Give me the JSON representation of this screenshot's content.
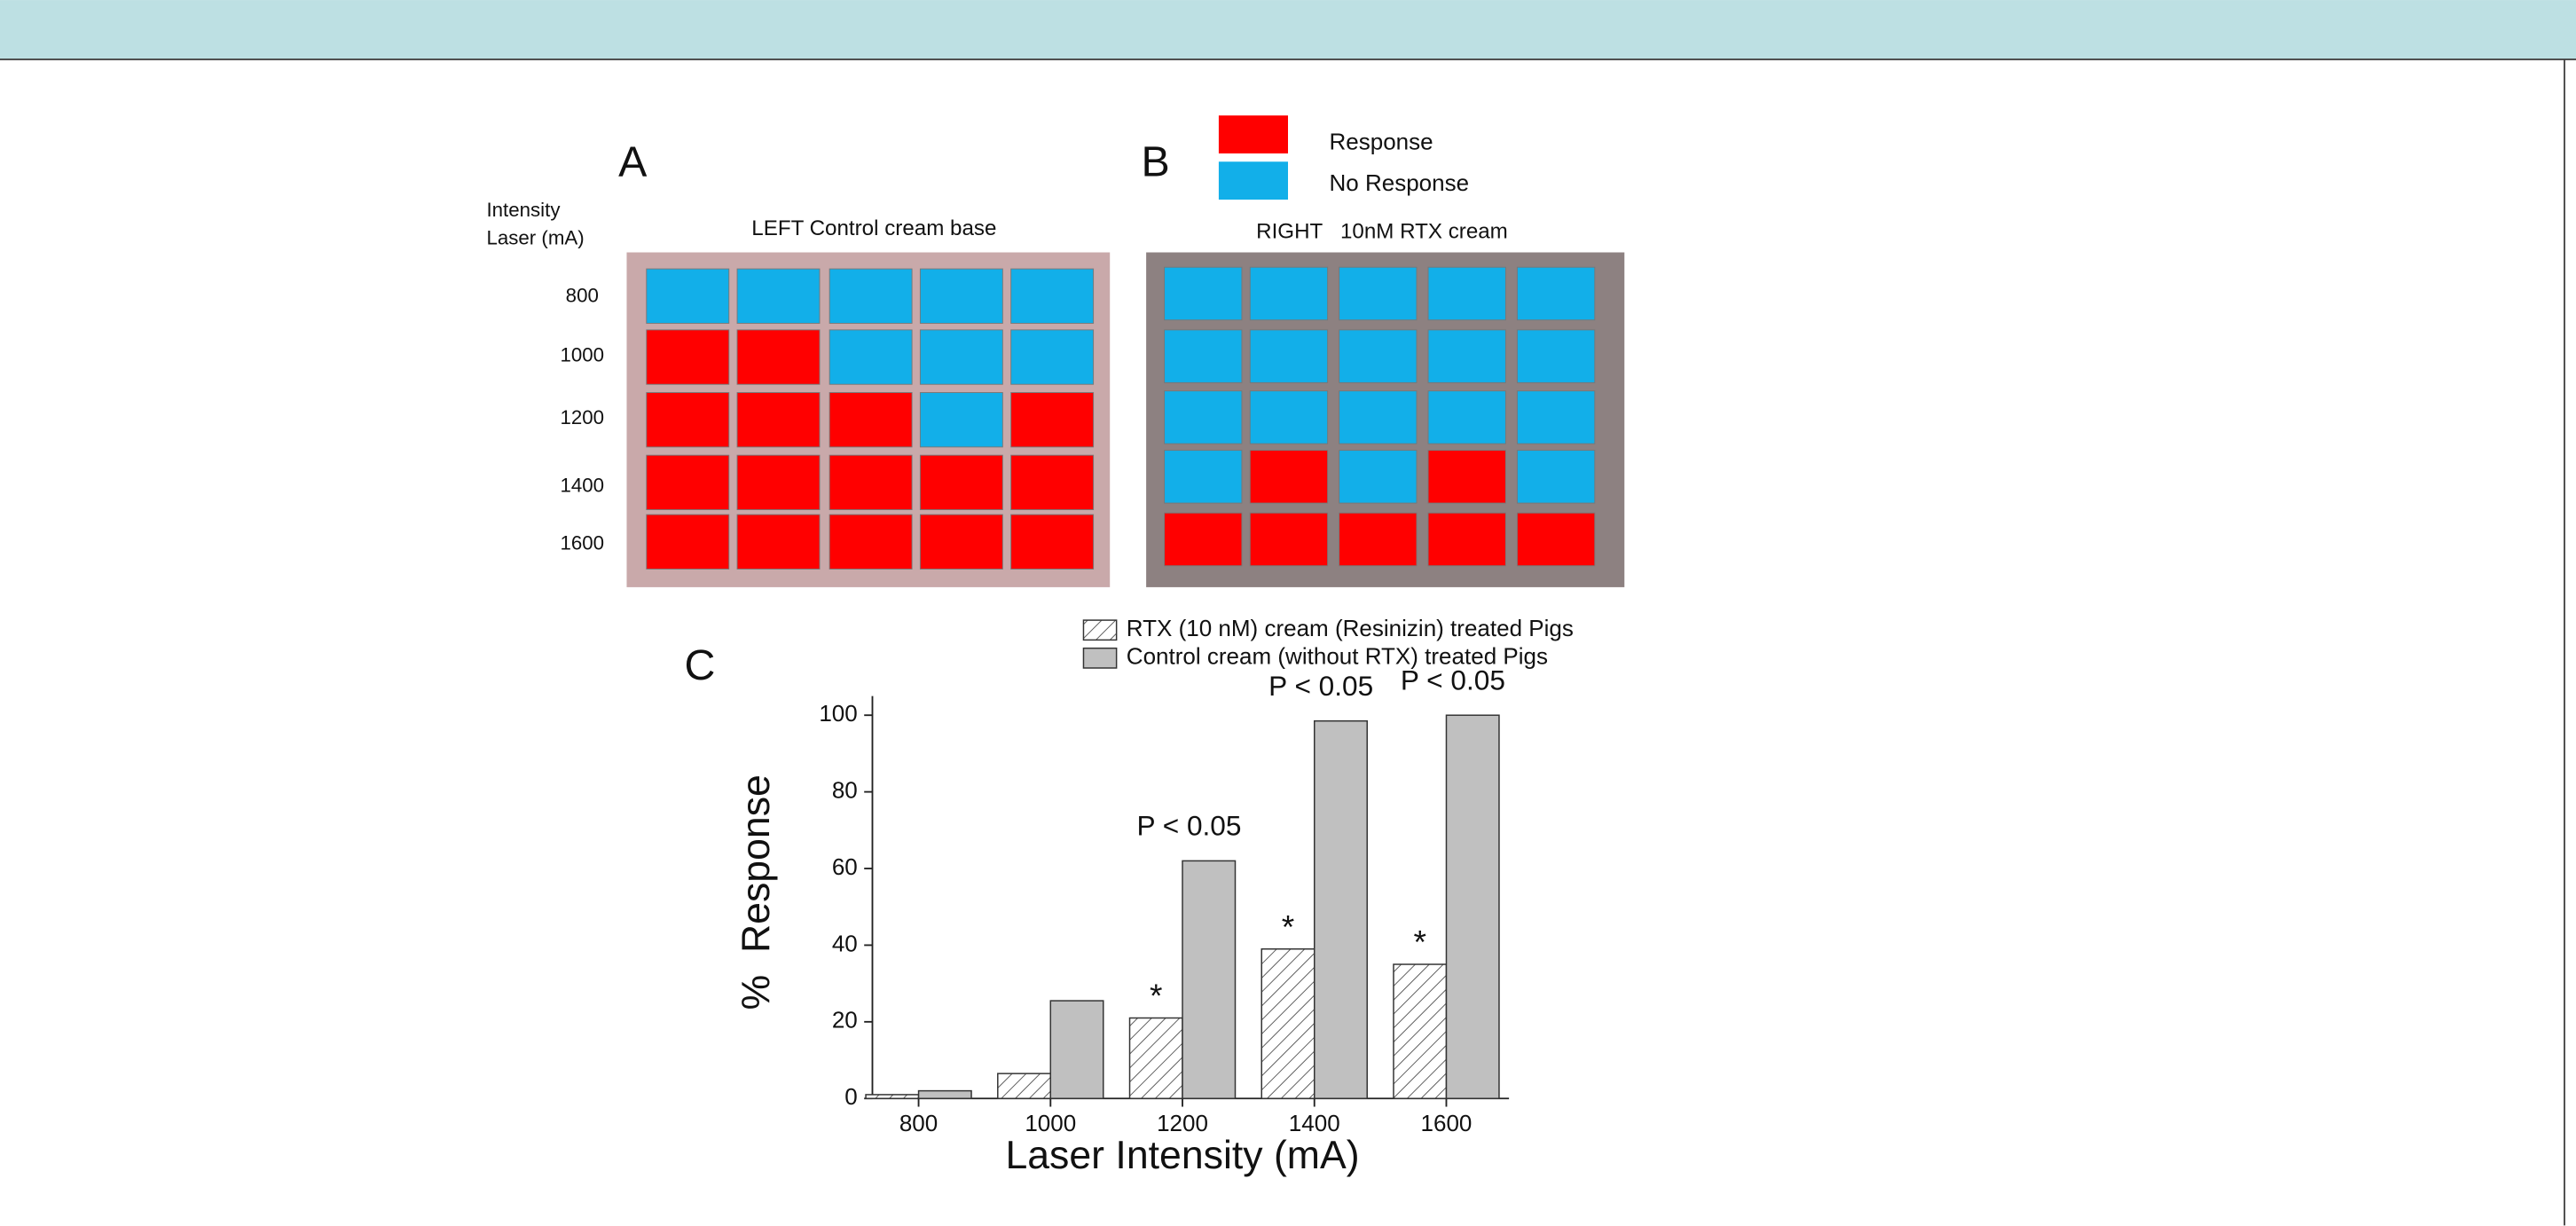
{
  "legend": [
    {
      "label": "Response",
      "color": "#ff0000"
    },
    {
      "label": "No Response",
      "color": "#12afe9"
    }
  ],
  "grid_axis_label": [
    "Intensity",
    "Laser (mA)"
  ],
  "row_labels": [
    "800",
    "1000",
    "1200",
    "1400",
    "1600"
  ],
  "panel_a": {
    "letter": "A",
    "title": "LEFT Control cream base",
    "cells": [
      [
        1,
        1,
        1,
        1,
        1
      ],
      [
        0,
        0,
        1,
        1,
        1
      ],
      [
        0,
        0,
        0,
        1,
        0
      ],
      [
        0,
        0,
        0,
        0,
        0
      ],
      [
        0,
        0,
        0,
        0,
        0
      ]
    ]
  },
  "panel_b": {
    "letter": "B",
    "title": "RIGHT   10nM RTX cream",
    "cells": [
      [
        1,
        1,
        1,
        1,
        1
      ],
      [
        1,
        1,
        1,
        1,
        1
      ],
      [
        1,
        1,
        1,
        1,
        1
      ],
      [
        1,
        0,
        1,
        0,
        1
      ],
      [
        0,
        0,
        0,
        0,
        0
      ]
    ]
  },
  "chart_data": {
    "type": "bar",
    "letter": "C",
    "x_label": "Laser Intensity (mA)",
    "y_label": "%  Response",
    "categories": [
      "800",
      "1000",
      "1200",
      "1400",
      "1600"
    ],
    "series": [
      {
        "name": "RTX (10 nM) cream (Resinizin) treated Pigs",
        "color": "#555555",
        "hatch": true,
        "values": [
          1,
          6.5,
          21,
          39,
          35
        ],
        "labels": [
          null,
          null,
          "*",
          "*",
          "*"
        ]
      },
      {
        "name": "Control cream (without RTX) treated Pigs",
        "color": "#c0c0c0",
        "hatch": false,
        "values": [
          2,
          25.5,
          62,
          98.5,
          100
        ],
        "labels": [
          null,
          null,
          "P < 0.05",
          "P < 0.05",
          "P < 0.05"
        ]
      }
    ],
    "ylim": [
      0,
      105
    ],
    "yticks": [
      0,
      20,
      40,
      60,
      80,
      100
    ]
  }
}
